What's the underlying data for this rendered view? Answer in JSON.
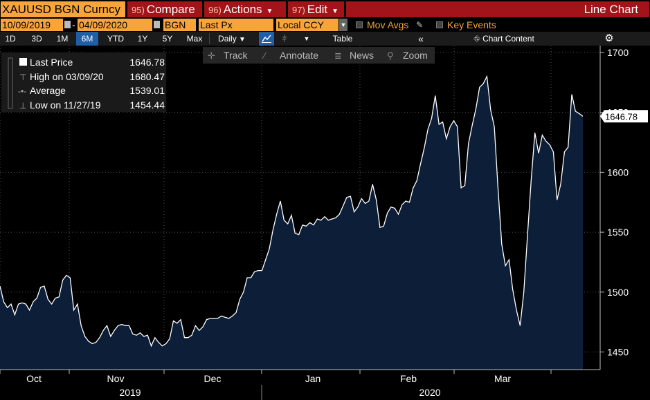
{
  "header": {
    "ticker": "XAUUSD BGN Curncy",
    "compare": {
      "num": "95)",
      "label": "Compare"
    },
    "actions": {
      "num": "96)",
      "label": "Actions"
    },
    "edit": {
      "num": "97)",
      "label": "Edit"
    },
    "title": "Line Chart"
  },
  "fields": {
    "start_date": "10/09/2019",
    "end_date": "04/09/2020",
    "source": "BGN",
    "price": "Last Px",
    "currency": "Local CCY",
    "mov_avgs": "Mov Avgs",
    "key_events": "Key Events"
  },
  "periods": [
    "1D",
    "3D",
    "1M",
    "6M",
    "YTD",
    "1Y",
    "5Y",
    "Max"
  ],
  "selected_period": "6M",
  "frequency": "Daily",
  "table_label": "Table",
  "chart_content_label": "Chart Content",
  "chart_tools": [
    "Track",
    "Annotate",
    "News",
    "Zoom"
  ],
  "legend": {
    "last_label": "Last Price",
    "last_value": "1646.78",
    "high_label": "High on 03/09/20",
    "high_value": "1680.47",
    "avg_label": "Average",
    "avg_value": "1539.01",
    "low_label": "Low on 11/27/19",
    "low_value": "1454.44"
  },
  "colors": {
    "orange": "#f7a53b",
    "red": "#a3141a",
    "area": "#0c1e38",
    "line": "#ffffff",
    "select_blue": "#1f5fa8"
  },
  "chart_data": {
    "type": "area",
    "series": [
      {
        "name": "Last Price",
        "x_index": "trading days 10/09/2019 - 04/09/2020",
        "values": [
          1505,
          1492,
          1487,
          1490,
          1481,
          1490,
          1491,
          1490,
          1485,
          1492,
          1495,
          1504,
          1505,
          1494,
          1490,
          1495,
          1496,
          1510,
          1514,
          1512,
          1485,
          1490,
          1472,
          1463,
          1459,
          1457,
          1458,
          1462,
          1468,
          1472,
          1463,
          1468,
          1472,
          1473,
          1472,
          1472,
          1465,
          1464,
          1466,
          1463,
          1464,
          1455,
          1462,
          1458,
          1455,
          1457,
          1461,
          1476,
          1474,
          1477,
          1462,
          1462,
          1464,
          1472,
          1468,
          1471,
          1477,
          1478,
          1478,
          1478,
          1480,
          1479,
          1478,
          1480,
          1483,
          1494,
          1500,
          1512,
          1512,
          1517,
          1518,
          1518,
          1527,
          1536,
          1552,
          1565,
          1576,
          1560,
          1557,
          1564,
          1549,
          1548,
          1556,
          1555,
          1558,
          1556,
          1561,
          1560,
          1563,
          1560,
          1561,
          1562,
          1565,
          1572,
          1579,
          1580,
          1567,
          1571,
          1578,
          1574,
          1576,
          1590,
          1577,
          1554,
          1555,
          1566,
          1571,
          1570,
          1565,
          1573,
          1576,
          1575,
          1587,
          1593,
          1607,
          1620,
          1636,
          1645,
          1664,
          1640,
          1642,
          1628,
          1638,
          1643,
          1638,
          1587,
          1589,
          1624,
          1639,
          1653,
          1671,
          1674,
          1680,
          1652,
          1638,
          1587,
          1540,
          1522,
          1527,
          1502,
          1485,
          1472,
          1500,
          1548,
          1594,
          1633,
          1616,
          1631,
          1626,
          1623,
          1617,
          1577,
          1590,
          1617,
          1621,
          1665,
          1651,
          1649,
          1646.78
        ]
      }
    ],
    "ylim": [
      1440,
      1705
    ],
    "y_ticks": [
      1450,
      1500,
      1550,
      1600,
      1650,
      1700
    ],
    "x_month_labels": [
      "Oct",
      "Nov",
      "Dec",
      "Jan",
      "Feb",
      "Mar"
    ],
    "x_year_labels": [
      "2019",
      "2020"
    ],
    "last_value_label": "1646.78",
    "grid": true
  }
}
